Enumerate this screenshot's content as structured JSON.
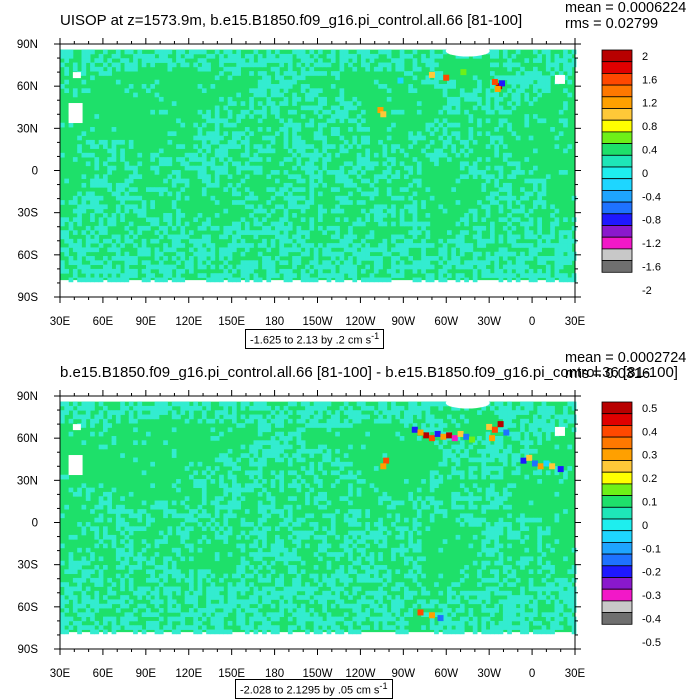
{
  "colors": {
    "land": "#1ee06a",
    "ocean": "#33ecd0",
    "missing": "#ffffff",
    "cb": [
      "#6f6f6f",
      "#c8c8c8",
      "#f218c8",
      "#8a18cc",
      "#1e18ff",
      "#1e72ff",
      "#1ea4ff",
      "#1ed6ff",
      "#1eeeee",
      "#1ee6b8",
      "#1ee06a",
      "#6ef018",
      "#ffff00",
      "#ffc838",
      "#ffa000",
      "#ff7800",
      "#ff4800",
      "#e00000",
      "#b80000"
    ]
  },
  "chart_data": [
    {
      "type": "heatmap",
      "title": "UISOP at z=1573.9m, b.e15.B1850.f09_g16.pi_control.all.66 [81-100]",
      "stats": {
        "mean": "mean = 0.0006224",
        "rms": "rms = 0.02799"
      },
      "range_note": "-1.625 to 2.13 by .2 cm s",
      "range_sup": "-1",
      "x_ticks": [
        "30E",
        "60E",
        "90E",
        "120E",
        "150E",
        "180",
        "150W",
        "120W",
        "90W",
        "60W",
        "30W",
        "0",
        "30E"
      ],
      "y_ticks": [
        "90N",
        "60N",
        "30N",
        "0",
        "30S",
        "60S",
        "90S"
      ],
      "colorbar_labels": [
        "2",
        "1.6",
        "1.2",
        "0.8",
        "0.4",
        "0",
        "-0.4",
        "-0.8",
        "-1.2",
        "-1.6",
        "-2"
      ],
      "xlim": [
        30,
        390
      ],
      "ylim": [
        -90,
        90
      ],
      "anomalies": [
        {
          "lon": 337,
          "lat": 60,
          "v": 2
        },
        {
          "lon": 339,
          "lat": 62,
          "v": -1.2
        },
        {
          "lon": 334,
          "lat": 63,
          "v": 1.6
        },
        {
          "lon": 336,
          "lat": 58,
          "v": 1.2
        },
        {
          "lon": 290,
          "lat": 68,
          "v": 0.8
        },
        {
          "lon": 300,
          "lat": 66,
          "v": 1.6
        },
        {
          "lon": 268,
          "lat": 64,
          "v": -0.4
        },
        {
          "lon": 312,
          "lat": 70,
          "v": 0.4
        },
        {
          "lon": 254,
          "lat": 43,
          "v": 1.2
        },
        {
          "lon": 256,
          "lat": 40,
          "v": 0.8
        }
      ]
    },
    {
      "type": "heatmap",
      "title": "b.e15.B1850.f09_g16.pi_control.all.66 [81-100] - b.e15.B1850.f09_g16.pi_control.36 [81-100]",
      "stats": {
        "mean": "mean = 0.0002724",
        "rms": "rms = 0.0316"
      },
      "range_note": "-2.028 to 2.1295 by .05 cm s",
      "range_sup": "-1",
      "x_ticks": [
        "30E",
        "60E",
        "90E",
        "120E",
        "150E",
        "180",
        "150W",
        "120W",
        "90W",
        "60W",
        "30W",
        "0",
        "30E"
      ],
      "y_ticks": [
        "90N",
        "60N",
        "30N",
        "0",
        "30S",
        "60S",
        "90S"
      ],
      "colorbar_labels": [
        "0.5",
        "0.4",
        "0.3",
        "0.2",
        "0.1",
        "0",
        "-0.1",
        "-0.2",
        "-0.3",
        "-0.4",
        "-0.5"
      ],
      "xlim": [
        30,
        390
      ],
      "ylim": [
        -90,
        90
      ],
      "anomalies": [
        {
          "lon": 286,
          "lat": 62,
          "v": 0.5
        },
        {
          "lon": 290,
          "lat": 60,
          "v": 0.4
        },
        {
          "lon": 294,
          "lat": 63,
          "v": -0.3
        },
        {
          "lon": 298,
          "lat": 61,
          "v": 0.3
        },
        {
          "lon": 302,
          "lat": 62,
          "v": 0.5
        },
        {
          "lon": 306,
          "lat": 60,
          "v": -0.4
        },
        {
          "lon": 310,
          "lat": 63,
          "v": 0.2
        },
        {
          "lon": 314,
          "lat": 61,
          "v": -0.2
        },
        {
          "lon": 318,
          "lat": 59,
          "v": 0.1
        },
        {
          "lon": 278,
          "lat": 66,
          "v": -0.3
        },
        {
          "lon": 282,
          "lat": 64,
          "v": 0.3
        },
        {
          "lon": 330,
          "lat": 68,
          "v": 0.2
        },
        {
          "lon": 334,
          "lat": 66,
          "v": 0.4
        },
        {
          "lon": 338,
          "lat": 70,
          "v": 0.5
        },
        {
          "lon": 342,
          "lat": 64,
          "v": -0.2
        },
        {
          "lon": 332,
          "lat": 60,
          "v": 0.3
        },
        {
          "lon": 354,
          "lat": 44,
          "v": -0.3
        },
        {
          "lon": 358,
          "lat": 46,
          "v": 0.2
        },
        {
          "lon": 362,
          "lat": 42,
          "v": -0.2
        },
        {
          "lon": 366,
          "lat": 40,
          "v": 0.3
        },
        {
          "lon": 370,
          "lat": 42,
          "v": -0.1
        },
        {
          "lon": 374,
          "lat": 40,
          "v": 0.2
        },
        {
          "lon": 380,
          "lat": 38,
          "v": -0.3
        },
        {
          "lon": 258,
          "lat": 44,
          "v": 0.4
        },
        {
          "lon": 256,
          "lat": 40,
          "v": 0.3
        },
        {
          "lon": 282,
          "lat": -64,
          "v": 0.4
        },
        {
          "lon": 290,
          "lat": -66,
          "v": 0.3
        },
        {
          "lon": 296,
          "lat": -68,
          "v": -0.2
        }
      ]
    }
  ]
}
